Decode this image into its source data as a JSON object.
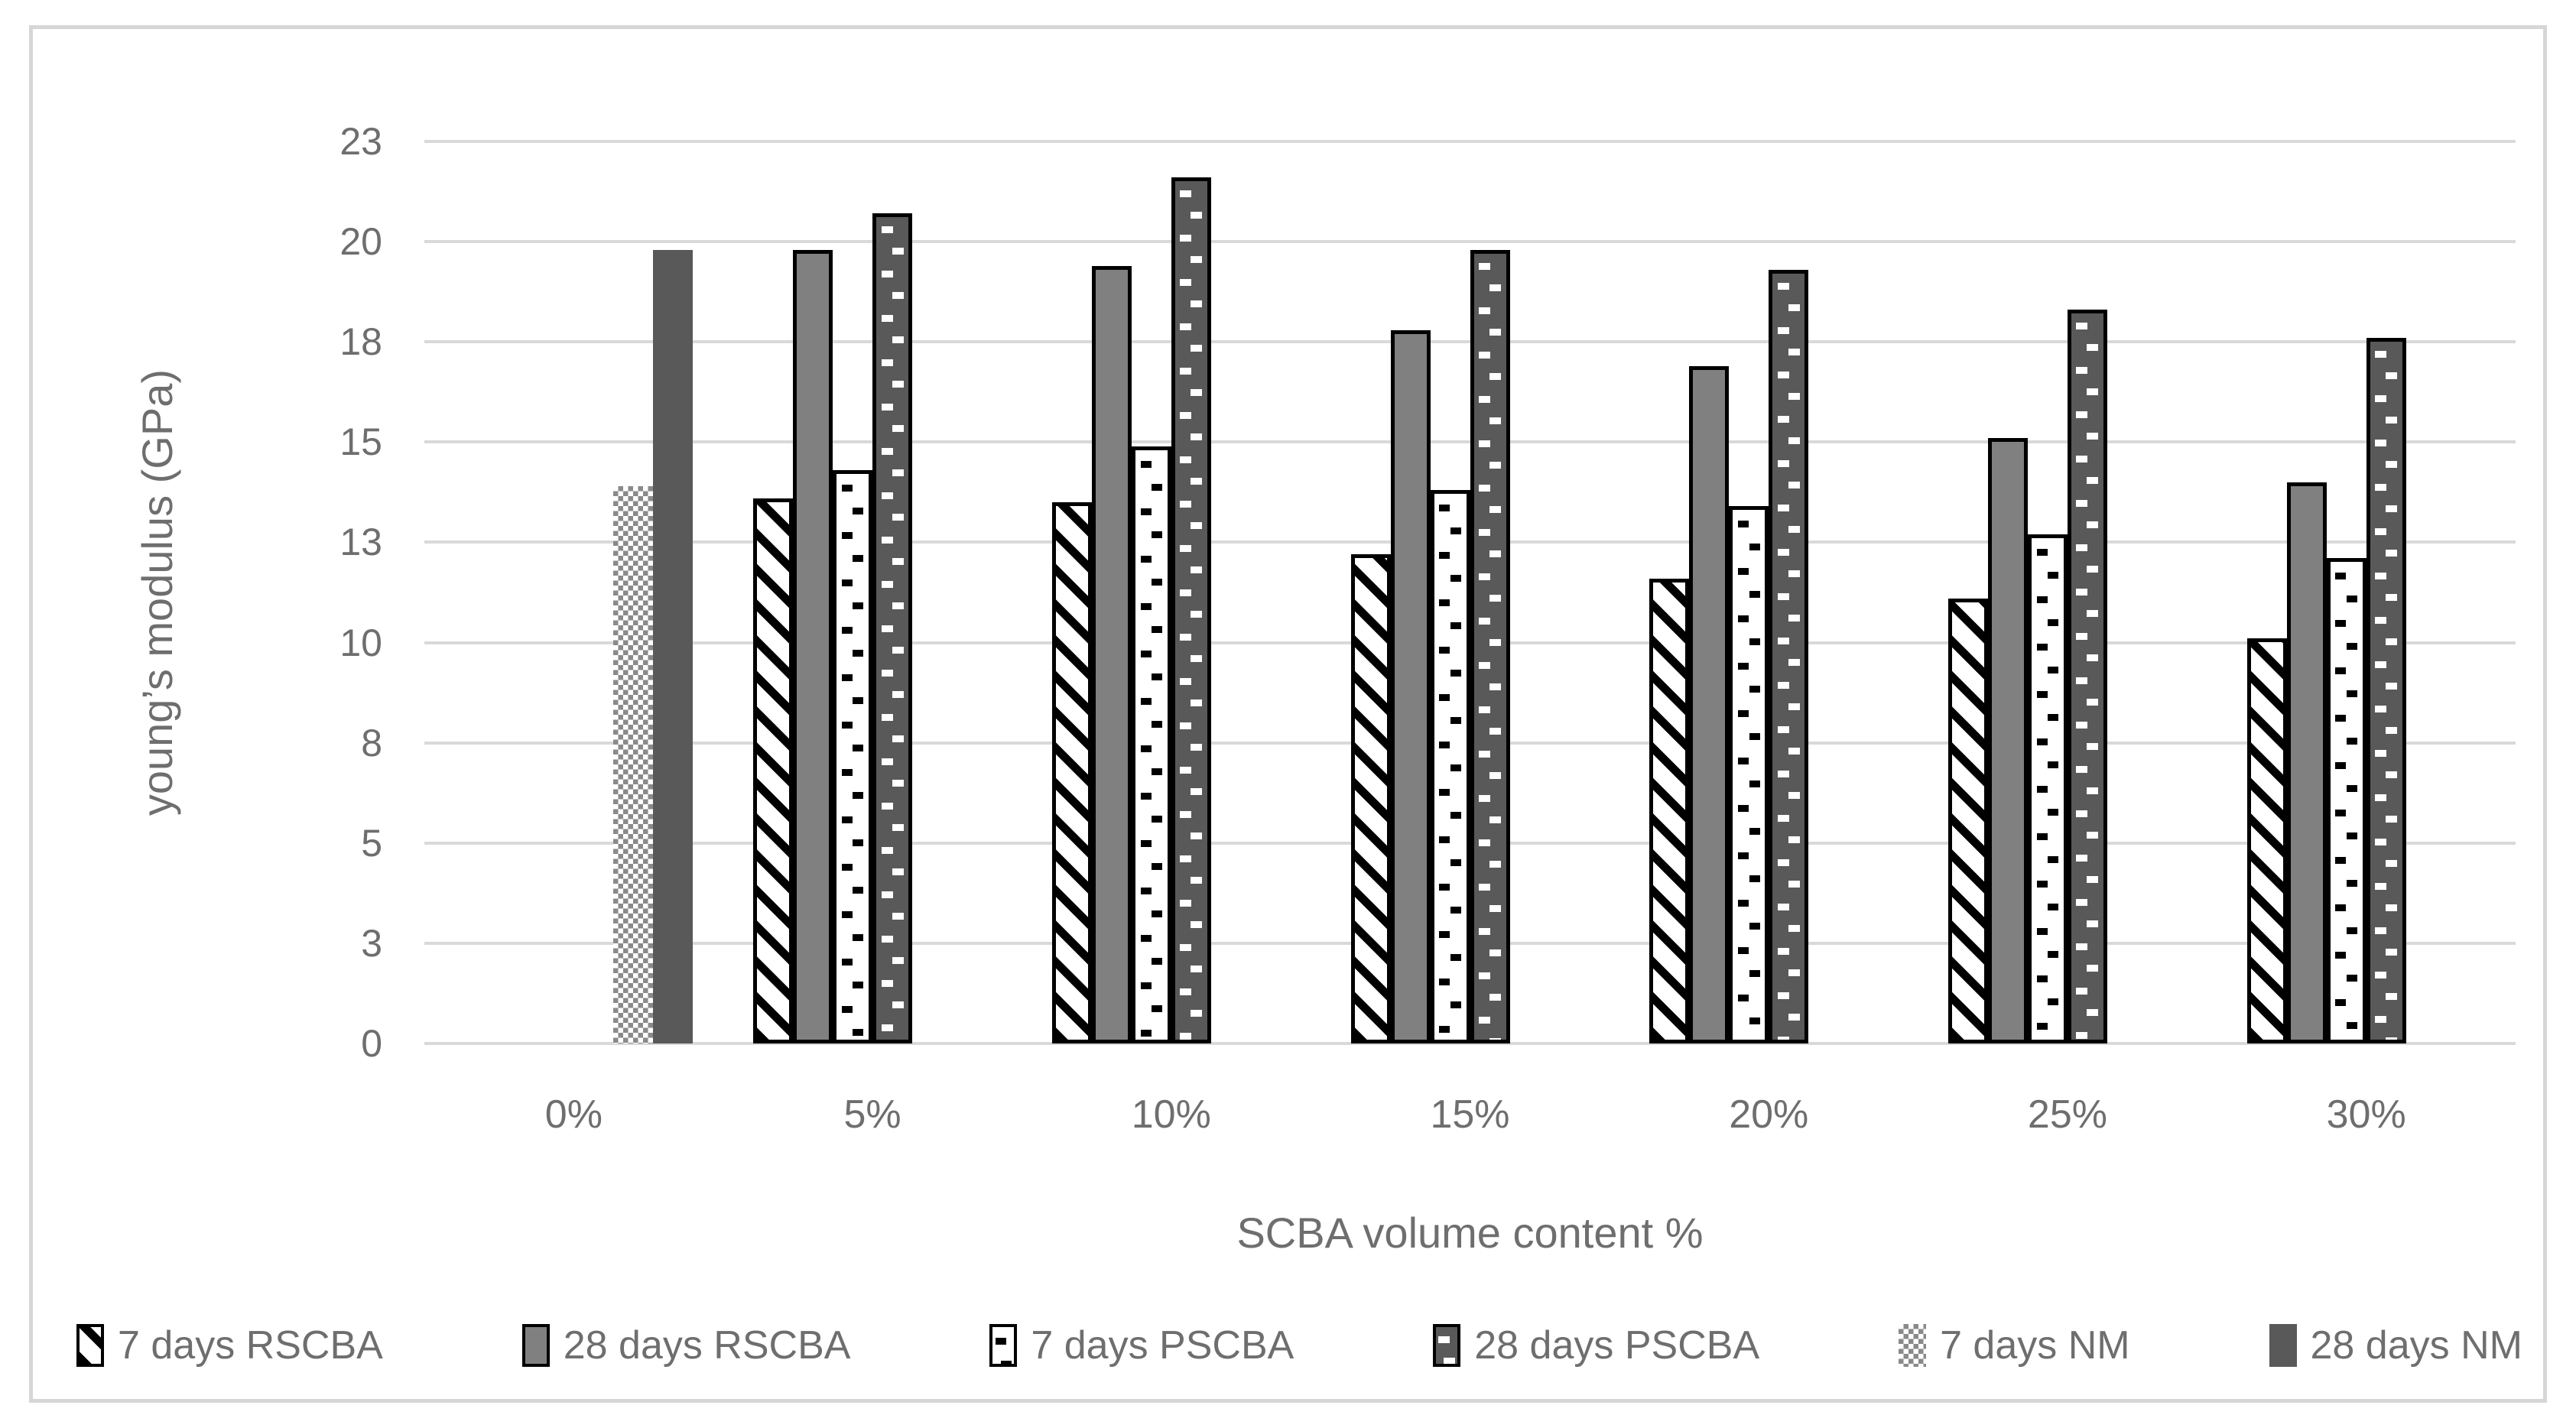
{
  "figure": {
    "background": "#ffffff",
    "frame_border_color": "#d6d6d6"
  },
  "chart_data": {
    "type": "bar",
    "title": "",
    "xlabel": "SCBA volume content %",
    "ylabel": "young’s modulus  (GPa)",
    "categories": [
      "0%",
      "5%",
      "10%",
      "15%",
      "20%",
      "25%",
      "30%"
    ],
    "ylim": [
      0,
      22.5
    ],
    "gridline_step": 2.5,
    "ytick_labels": [
      "0",
      "3",
      "5",
      "8",
      "10",
      "13",
      "15",
      "18",
      "20",
      "23"
    ],
    "grid": true,
    "legend_position": "bottom",
    "series": [
      {
        "name": "7 days RSCBA",
        "pattern": "diagonal-hatch",
        "bordered": true,
        "values": [
          null,
          13.6,
          13.5,
          12.2,
          11.6,
          11.1,
          10.1
        ]
      },
      {
        "name": "28 days RSCBA",
        "pattern": "solid-gray",
        "bordered": true,
        "values": [
          null,
          19.8,
          19.4,
          17.8,
          16.9,
          15.1,
          14.0
        ]
      },
      {
        "name": "7 days PSCBA",
        "pattern": "white-dots",
        "bordered": true,
        "values": [
          null,
          14.3,
          14.9,
          13.8,
          13.4,
          12.7,
          12.1
        ]
      },
      {
        "name": "28 days PSCBA",
        "pattern": "dark-dots",
        "bordered": true,
        "values": [
          null,
          20.7,
          21.6,
          19.8,
          19.3,
          18.3,
          17.6
        ]
      },
      {
        "name": "7 days NM",
        "pattern": "checker",
        "bordered": false,
        "values": [
          13.9,
          null,
          null,
          null,
          null,
          null,
          null
        ]
      },
      {
        "name": "28 days NM",
        "pattern": "solid-dark",
        "bordered": false,
        "values": [
          19.8,
          null,
          null,
          null,
          null,
          null,
          null
        ]
      }
    ],
    "colors": {
      "solid_gray": "#808080",
      "solid_dark": "#595959",
      "gridline": "#d9d9d9",
      "text": "#6e6e6e",
      "bar_border": "#000000"
    }
  }
}
